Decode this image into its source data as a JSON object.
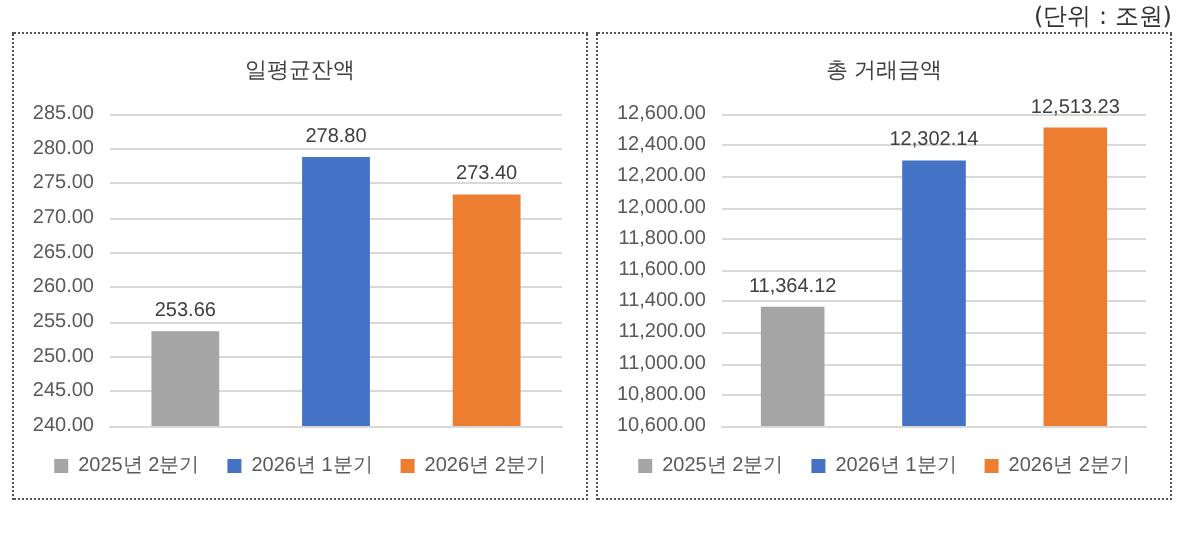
{
  "chart_data": [
    {
      "type": "bar",
      "title": "일평균잔액",
      "categories": [
        null,
        null,
        null
      ],
      "series": [
        {
          "name": "2025년 2분기",
          "color": "#a5a5a5",
          "values": [
            253.66,
            null,
            null
          ],
          "value_labels": [
            "253.66",
            null,
            null
          ]
        },
        {
          "name": "2026년 1분기",
          "color": "#4472c4",
          "values": [
            null,
            278.8,
            null
          ],
          "value_labels": [
            null,
            "278.80",
            null
          ]
        },
        {
          "name": "2026년 2분기",
          "color": "#ed7d31",
          "values": [
            null,
            null,
            273.4
          ],
          "value_labels": [
            null,
            null,
            "273.40"
          ]
        }
      ],
      "ylim": [
        240,
        285
      ],
      "yticks": [
        {
          "value": 240,
          "label": "240.00"
        },
        {
          "value": 245,
          "label": "245.00"
        },
        {
          "value": 250,
          "label": "250.00"
        },
        {
          "value": 255,
          "label": "255.00"
        },
        {
          "value": 260,
          "label": "260.00"
        },
        {
          "value": 265,
          "label": "265.00"
        },
        {
          "value": 270,
          "label": "270.00"
        },
        {
          "value": 275,
          "label": "275.00"
        },
        {
          "value": 280,
          "label": "280.00"
        },
        {
          "value": 285,
          "label": "285.00"
        }
      ],
      "grid": "y",
      "legend": "bottom"
    },
    {
      "type": "bar",
      "title": "총 거래금액",
      "annotations": [
        "(단위 : 조원)"
      ],
      "categories": [
        null,
        null,
        null
      ],
      "series": [
        {
          "name": "2025년 2분기",
          "color": "#a5a5a5",
          "values": [
            11364.12,
            null,
            null
          ],
          "value_labels": [
            "11,364.12",
            null,
            null
          ]
        },
        {
          "name": "2026년 1분기",
          "color": "#4472c4",
          "values": [
            null,
            12302.14,
            null
          ],
          "value_labels": [
            null,
            "12,302.14",
            null
          ]
        },
        {
          "name": "2026년 2분기",
          "color": "#ed7d31",
          "values": [
            null,
            null,
            12513.23
          ],
          "value_labels": [
            null,
            null,
            "12,513.23"
          ]
        }
      ],
      "ylim": [
        10600,
        12600
      ],
      "yticks": [
        {
          "value": 10600,
          "label": "10,600.00"
        },
        {
          "value": 10800,
          "label": "10,800.00"
        },
        {
          "value": 11000,
          "label": "11,000.00"
        },
        {
          "value": 11200,
          "label": "11,200.00"
        },
        {
          "value": 11400,
          "label": "11,400.00"
        },
        {
          "value": 11600,
          "label": "11,600.00"
        },
        {
          "value": 11800,
          "label": "11,800.00"
        },
        {
          "value": 12000,
          "label": "12,000.00"
        },
        {
          "value": 12200,
          "label": "12,200.00"
        },
        {
          "value": 12400,
          "label": "12,400.00"
        },
        {
          "value": 12600,
          "label": "12,600.00"
        }
      ],
      "grid": "y",
      "legend": "bottom"
    }
  ]
}
